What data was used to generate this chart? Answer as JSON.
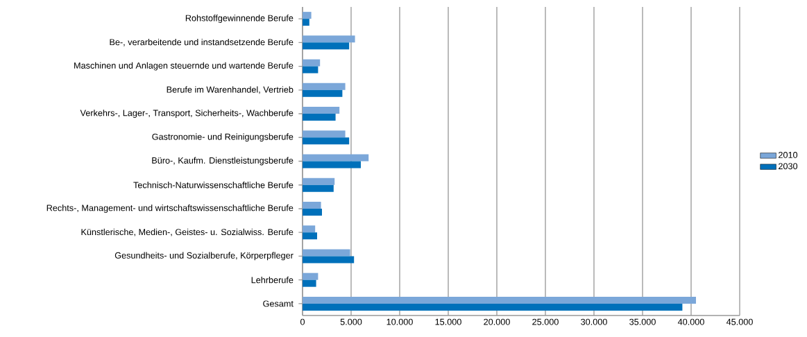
{
  "chart_data": {
    "type": "bar",
    "orientation": "horizontal",
    "categories": [
      "Rohstoffgewinnende Berufe",
      "Be-, verarbeitende und instandsetzende Berufe",
      "Maschinen und Anlagen steuernde und wartende Berufe",
      "Berufe im Warenhandel, Vertrieb",
      "Verkehrs-, Lager-, Transport, Sicherheits-, Wachberufe",
      "Gastronomie- und Reinigungsberufe",
      "Büro-, Kaufm. Dienstleistungsberufe",
      "Technisch-Naturwissenschaftliche Berufe",
      "Rechts-, Management- und wirtschaftswissenschaftliche Berufe",
      "Künstlerische, Medien-, Geistes- u. Sozialwiss. Berufe",
      "Gesundheits- und Sozialberufe, Körperpfleger",
      "Lehrberufe",
      "Gesamt"
    ],
    "series": [
      {
        "name": "2010",
        "color": "#7ba7d9",
        "values": [
          900,
          5400,
          1800,
          4400,
          3800,
          4400,
          6800,
          3300,
          1900,
          1300,
          4900,
          1600,
          40500
        ]
      },
      {
        "name": "2030",
        "color": "#0070ba",
        "values": [
          700,
          4800,
          1600,
          4100,
          3400,
          4800,
          6000,
          3200,
          2000,
          1500,
          5300,
          1400,
          39100
        ]
      }
    ],
    "xlim": [
      0,
      45000
    ],
    "xticks": [
      0,
      {
        "value": 5000,
        "label": "5.000"
      },
      {
        "value": 10000,
        "label": "10.000"
      },
      {
        "value": 15000,
        "label": "15.000"
      },
      {
        "value": 20000,
        "label": "20.000"
      },
      {
        "value": 25000,
        "label": "25.000"
      },
      {
        "value": 30000,
        "label": "30.000"
      },
      {
        "value": 35000,
        "label": "35.000"
      },
      {
        "value": 40000,
        "label": "40.000"
      },
      {
        "value": 45000,
        "label": "45.000"
      }
    ],
    "grid": "x",
    "legend": "right"
  }
}
